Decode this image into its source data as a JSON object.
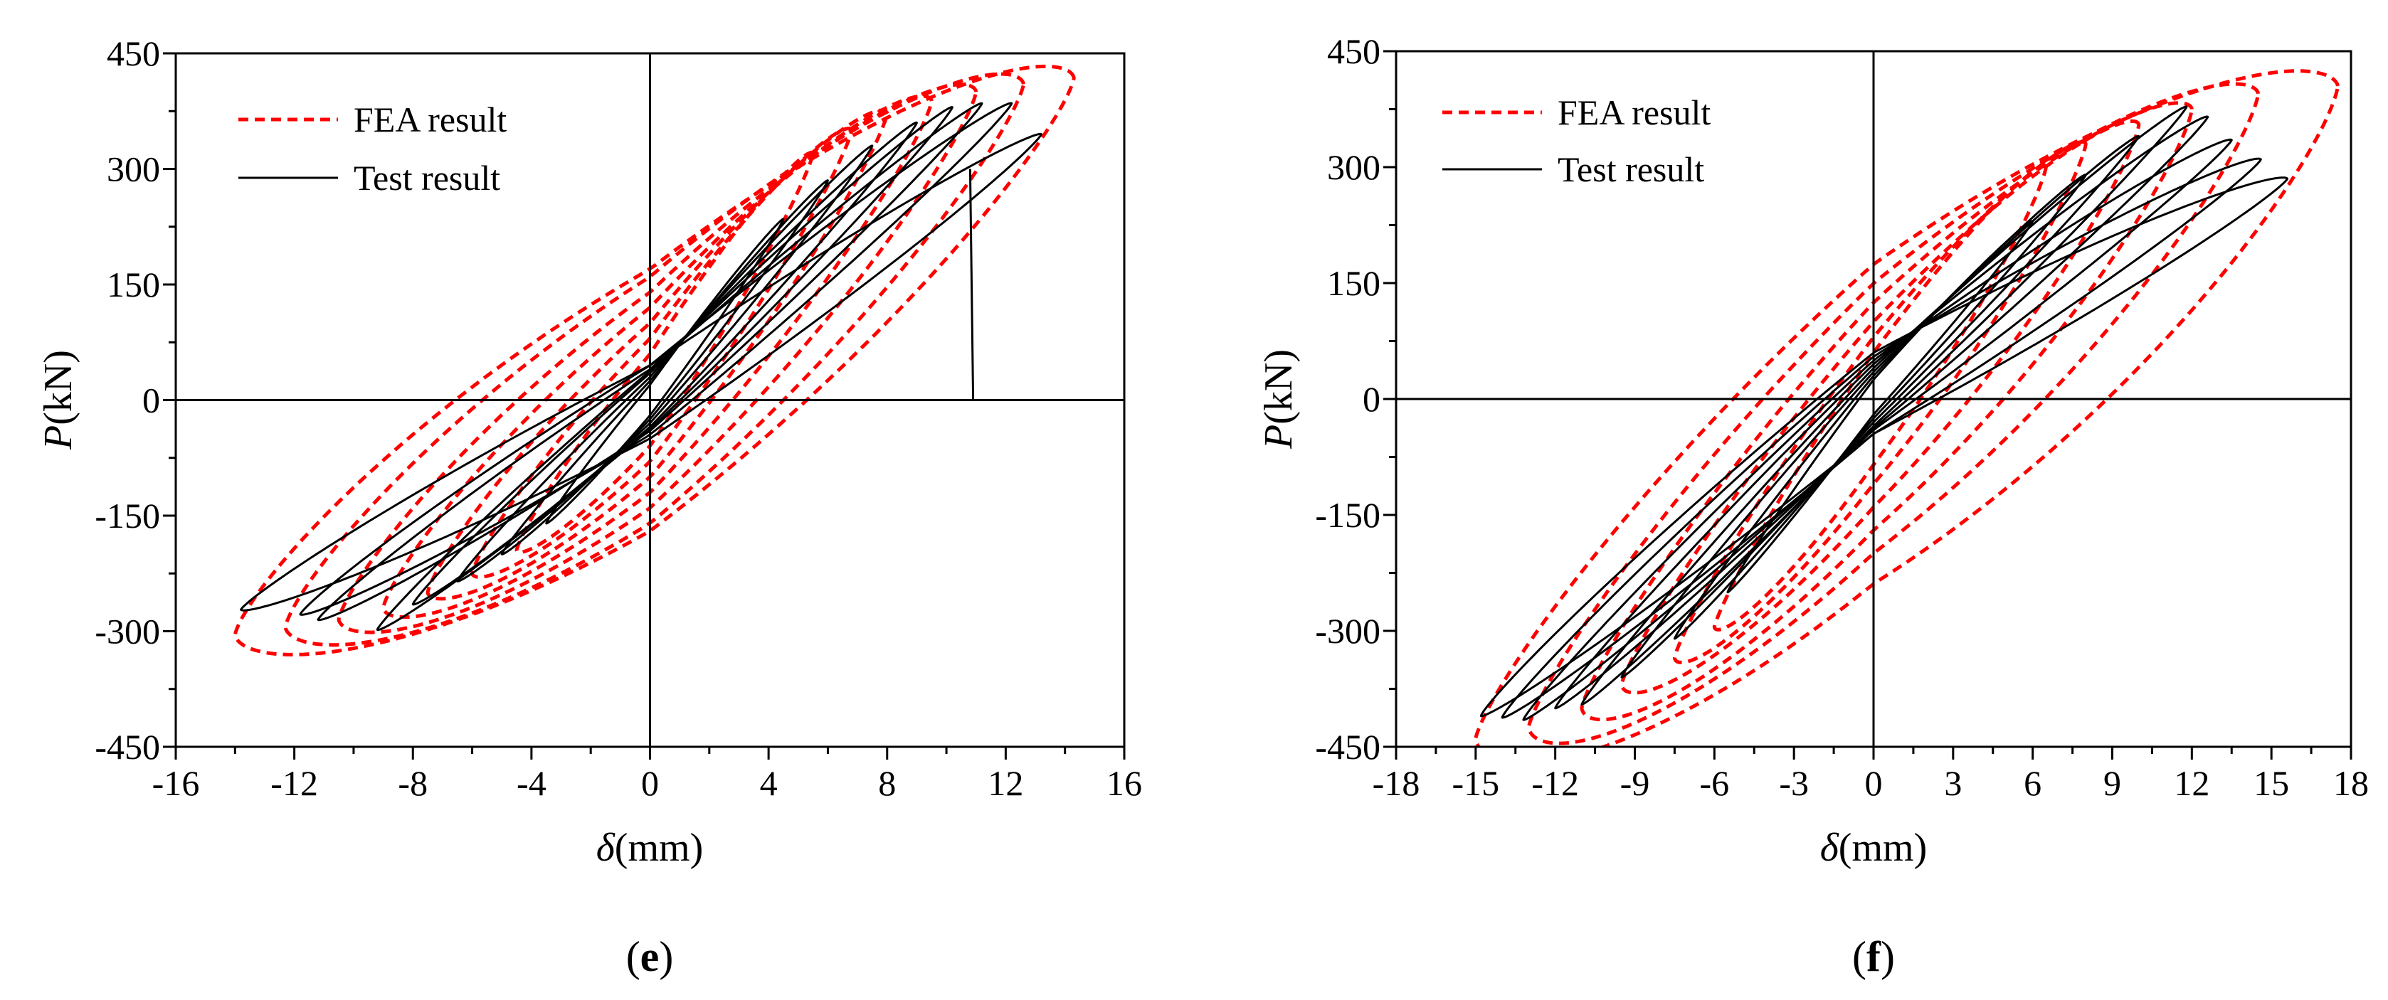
{
  "chart_data": [
    {
      "type": "line",
      "panel_label": "e",
      "xlabel_var": "δ",
      "xlabel_unit": "(mm)",
      "ylabel_var": "P",
      "ylabel_unit": "(kN)",
      "xlim": [
        -16,
        16
      ],
      "ylim": [
        -450,
        450
      ],
      "xticks": [
        "-16",
        "-12",
        "-8",
        "-4",
        "0",
        "4",
        "8",
        "12",
        "16"
      ],
      "yticks": [
        "-450",
        "-300",
        "-150",
        "0",
        "150",
        "300",
        "450"
      ],
      "legend": [
        "FEA result",
        "Test result"
      ],
      "legend_position": "top-left",
      "series": [
        {
          "name": "FEA result",
          "style": "red-dashed",
          "loops": [
            {
              "xmax": 14.3,
              "pmax": 418,
              "xmin": -14.0,
              "pmin": -305,
              "r0pos": 170,
              "r0neg": -170
            },
            {
              "xmax": 12.6,
              "pmax": 410,
              "xmin": -12.3,
              "pmin": -295,
              "r0pos": 160,
              "r0neg": -160
            },
            {
              "xmax": 11.0,
              "pmax": 400,
              "xmin": -10.5,
              "pmin": -285,
              "r0pos": 140,
              "r0neg": -140
            },
            {
              "xmax": 9.5,
              "pmax": 388,
              "xmin": -9.0,
              "pmin": -270,
              "r0pos": 120,
              "r0neg": -120
            },
            {
              "xmax": 8.0,
              "pmax": 372,
              "xmin": -7.5,
              "pmin": -250,
              "r0pos": 100,
              "r0neg": -100
            },
            {
              "xmax": 6.8,
              "pmax": 350,
              "xmin": -6.0,
              "pmin": -225,
              "r0pos": 80,
              "r0neg": -80
            },
            {
              "xmax": 5.5,
              "pmax": 320,
              "xmin": -4.5,
              "pmin": -195,
              "r0pos": 60,
              "r0neg": -60
            }
          ]
        },
        {
          "name": "Test result",
          "style": "black-solid",
          "loops": [
            {
              "xmax": 13.2,
              "pmax": 345,
              "xmin": -13.8,
              "pmin": -272,
              "r0pos": 45,
              "r0neg": -50
            },
            {
              "xmax": 12.2,
              "pmax": 385,
              "xmin": -11.8,
              "pmin": -278,
              "r0pos": 45,
              "r0neg": -45
            },
            {
              "xmax": 11.2,
              "pmax": 385,
              "xmin": -11.2,
              "pmin": -285,
              "r0pos": 40,
              "r0neg": -40
            },
            {
              "xmax": 10.2,
              "pmax": 380,
              "xmin": -9.2,
              "pmin": -298,
              "r0pos": 38,
              "r0neg": -38
            },
            {
              "xmax": 9.0,
              "pmax": 360,
              "xmin": -8.0,
              "pmin": -265,
              "r0pos": 35,
              "r0neg": -35
            },
            {
              "xmax": 7.5,
              "pmax": 330,
              "xmin": -6.5,
              "pmin": -235,
              "r0pos": 30,
              "r0neg": -30
            },
            {
              "xmax": 6.0,
              "pmax": 285,
              "xmin": -5.0,
              "pmin": -200,
              "r0pos": 25,
              "r0neg": -25
            },
            {
              "xmax": 4.5,
              "pmax": 235,
              "xmin": -3.5,
              "pmin": -160,
              "r0pos": 20,
              "r0neg": -20
            }
          ],
          "extra_segments": [
            [
              [
                10.8,
                300
              ],
              [
                10.9,
                0
              ]
            ]
          ]
        }
      ]
    },
    {
      "type": "line",
      "panel_label": "f",
      "xlabel_var": "δ",
      "xlabel_unit": "(mm)",
      "ylabel_var": "P",
      "ylabel_unit": "(kN)",
      "xlim": [
        -18,
        18
      ],
      "ylim": [
        -450,
        450
      ],
      "xticks": [
        "-18",
        "-15",
        "-12",
        "-9",
        "-6",
        "-3",
        "0",
        "3",
        "6",
        "9",
        "12",
        "15",
        "18"
      ],
      "yticks": [
        "-450",
        "-300",
        "-150",
        "0",
        "150",
        "300",
        "450"
      ],
      "legend": [
        "FEA result",
        "Test result"
      ],
      "legend_position": "top-left",
      "series": [
        {
          "name": "FEA result",
          "style": "red-dashed",
          "loops": [
            {
              "xmax": 17.5,
              "pmax": 405,
              "xmin": -15.0,
              "pmin": -440,
              "r0pos": 175,
              "r0neg": -240
            },
            {
              "xmax": 14.5,
              "pmax": 395,
              "xmin": -13.0,
              "pmin": -425,
              "r0pos": 150,
              "r0neg": -200
            },
            {
              "xmax": 12.0,
              "pmax": 375,
              "xmin": -11.0,
              "pmin": -400,
              "r0pos": 125,
              "r0neg": -170
            },
            {
              "xmax": 10.0,
              "pmax": 355,
              "xmin": -9.5,
              "pmin": -370,
              "r0pos": 100,
              "r0neg": -140
            },
            {
              "xmax": 8.0,
              "pmax": 330,
              "xmin": -7.5,
              "pmin": -335,
              "r0pos": 80,
              "r0neg": -110
            },
            {
              "xmax": 6.5,
              "pmax": 300,
              "xmin": -6.0,
              "pmin": -295,
              "r0pos": 60,
              "r0neg": -85
            }
          ]
        },
        {
          "name": "Test result",
          "style": "black-solid",
          "loops": [
            {
              "xmax": 15.6,
              "pmax": 285,
              "xmin": -14.8,
              "pmin": -410,
              "r0pos": 60,
              "r0neg": -45
            },
            {
              "xmax": 14.6,
              "pmax": 310,
              "xmin": -14.0,
              "pmin": -412,
              "r0pos": 55,
              "r0neg": -45
            },
            {
              "xmax": 13.5,
              "pmax": 335,
              "xmin": -13.2,
              "pmin": -415,
              "r0pos": 50,
              "r0neg": -40
            },
            {
              "xmax": 12.6,
              "pmax": 365,
              "xmin": -12.0,
              "pmin": -400,
              "r0pos": 45,
              "r0neg": -38
            },
            {
              "xmax": 11.8,
              "pmax": 378,
              "xmin": -11.0,
              "pmin": -395,
              "r0pos": 40,
              "r0neg": -35
            },
            {
              "xmax": 10.0,
              "pmax": 340,
              "xmin": -9.5,
              "pmin": -360,
              "r0pos": 35,
              "r0neg": -30
            },
            {
              "xmax": 8.0,
              "pmax": 290,
              "xmin": -7.5,
              "pmin": -310,
              "r0pos": 30,
              "r0neg": -25
            },
            {
              "xmax": 6.0,
              "pmax": 230,
              "xmin": -5.5,
              "pmin": -250,
              "r0pos": 25,
              "r0neg": -20
            }
          ]
        }
      ]
    }
  ]
}
